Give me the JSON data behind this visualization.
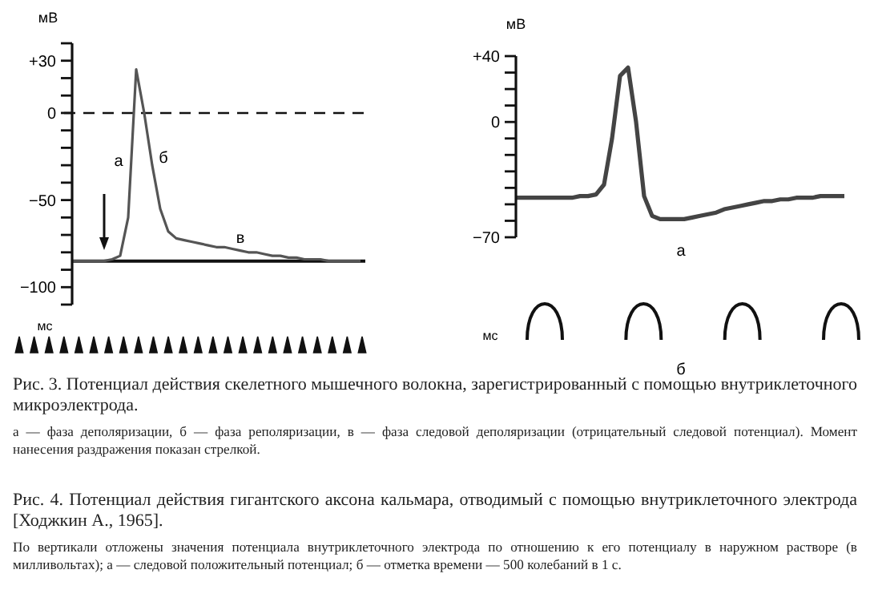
{
  "chart_data": [
    {
      "type": "line",
      "ylabel": "мВ",
      "xlabel": "мс",
      "tick_labels": "y",
      "ylim": [
        -110,
        40
      ],
      "categories": [
        null,
        null,
        null,
        null,
        null,
        null,
        null,
        null,
        null,
        null,
        null,
        null,
        null,
        null,
        null,
        null,
        null,
        null,
        null,
        null,
        null,
        null,
        null,
        null,
        null,
        null,
        null,
        null,
        null,
        null,
        null,
        null,
        null,
        null,
        null,
        null,
        null
      ],
      "yticks": [
        {
          "value": 40,
          "label": null
        },
        {
          "value": 30,
          "label": "+30"
        },
        {
          "value": 20,
          "label": null
        },
        {
          "value": 10,
          "label": null
        },
        {
          "value": 0,
          "label": "0"
        },
        {
          "value": -10,
          "label": null
        },
        {
          "value": -20,
          "label": null
        },
        {
          "value": -30,
          "label": null
        },
        {
          "value": -40,
          "label": null
        },
        {
          "value": -50,
          "label": "−50"
        },
        {
          "value": -60,
          "label": null
        },
        {
          "value": -70,
          "label": null
        },
        {
          "value": -80,
          "label": null
        },
        {
          "value": -90,
          "label": null
        },
        {
          "value": -100,
          "label": "−100"
        },
        {
          "value": -110,
          "label": null
        }
      ],
      "series": [
        {
          "color": "#555555",
          "values": [
            -85,
            -85,
            -85,
            -85,
            -85,
            -84,
            -82,
            -60,
            25,
            0,
            -30,
            -55,
            -68,
            -72,
            -73,
            -74,
            -75,
            -76,
            -77,
            -77,
            -78,
            -79,
            -80,
            -80,
            -81,
            -82,
            -82,
            -83,
            -83,
            -84,
            -84,
            -84,
            -85,
            -85,
            -85,
            -85,
            -85
          ]
        }
      ],
      "ref_lines": [
        {
          "axis": "y",
          "value": 0,
          "line_style": "dashed"
        },
        {
          "axis": "y",
          "value": -85,
          "line_style": "solid"
        }
      ],
      "annotations": [
        "а",
        "б",
        "в",
        "Рис. 3. Потенциал действия скелетного мышечного волокна, зарегистрированный с помощью внутриклеточного микроэлектрода.",
        "а — фаза деполяризации, б — фаза реполяризации, в — фаза следовой деполяризации (отрицательный следовой потенциал). Момент нанесения раздражения показан стрелкой."
      ]
    },
    {
      "type": "line",
      "ylabel": "мВ",
      "xlabel": "мс",
      "tick_labels": "y",
      "ylim": [
        -70,
        40
      ],
      "categories": [
        null,
        null,
        null,
        null,
        null,
        null,
        null,
        null,
        null,
        null,
        null,
        null,
        null,
        null,
        null,
        null,
        null,
        null,
        null,
        null,
        null,
        null,
        null,
        null,
        null,
        null,
        null,
        null,
        null,
        null,
        null,
        null,
        null,
        null,
        null,
        null,
        null,
        null,
        null,
        null,
        null,
        null
      ],
      "yticks": [
        {
          "value": 40,
          "label": "+40"
        },
        {
          "value": 30,
          "label": null
        },
        {
          "value": 20,
          "label": null
        },
        {
          "value": 10,
          "label": null
        },
        {
          "value": 0,
          "label": "0"
        },
        {
          "value": -10,
          "label": null
        },
        {
          "value": -20,
          "label": null
        },
        {
          "value": -30,
          "label": null
        },
        {
          "value": -40,
          "label": null
        },
        {
          "value": -50,
          "label": null
        },
        {
          "value": -60,
          "label": null
        },
        {
          "value": -70,
          "label": "−70"
        }
      ],
      "series": [
        {
          "color": "#444444",
          "values": [
            -46,
            -46,
            -46,
            -46,
            -46,
            -46,
            -46,
            -46,
            -45,
            -45,
            -44,
            -38,
            -10,
            28,
            33,
            0,
            -45,
            -57,
            -59,
            -59,
            -59,
            -59,
            -58,
            -57,
            -56,
            -55,
            -53,
            -52,
            -51,
            -50,
            -49,
            -48,
            -48,
            -47,
            -47,
            -46,
            -46,
            -46,
            -45,
            -45,
            -45,
            -45
          ]
        }
      ],
      "annotations": [
        "а",
        "б",
        "Рис. 4. Потенциал действия гигантского аксона кальмара, отводимый с помощью внутриклеточного электрода [Ходжкин А., 1965].",
        "По вертикали отложены значения потенциала внутриклеточного электрода по отношению к его потенциалу в наружном растворе (в милливольтах); а — следовой положительный потенциал; б — отметка времени — 500 колебаний в 1 с."
      ]
    }
  ]
}
